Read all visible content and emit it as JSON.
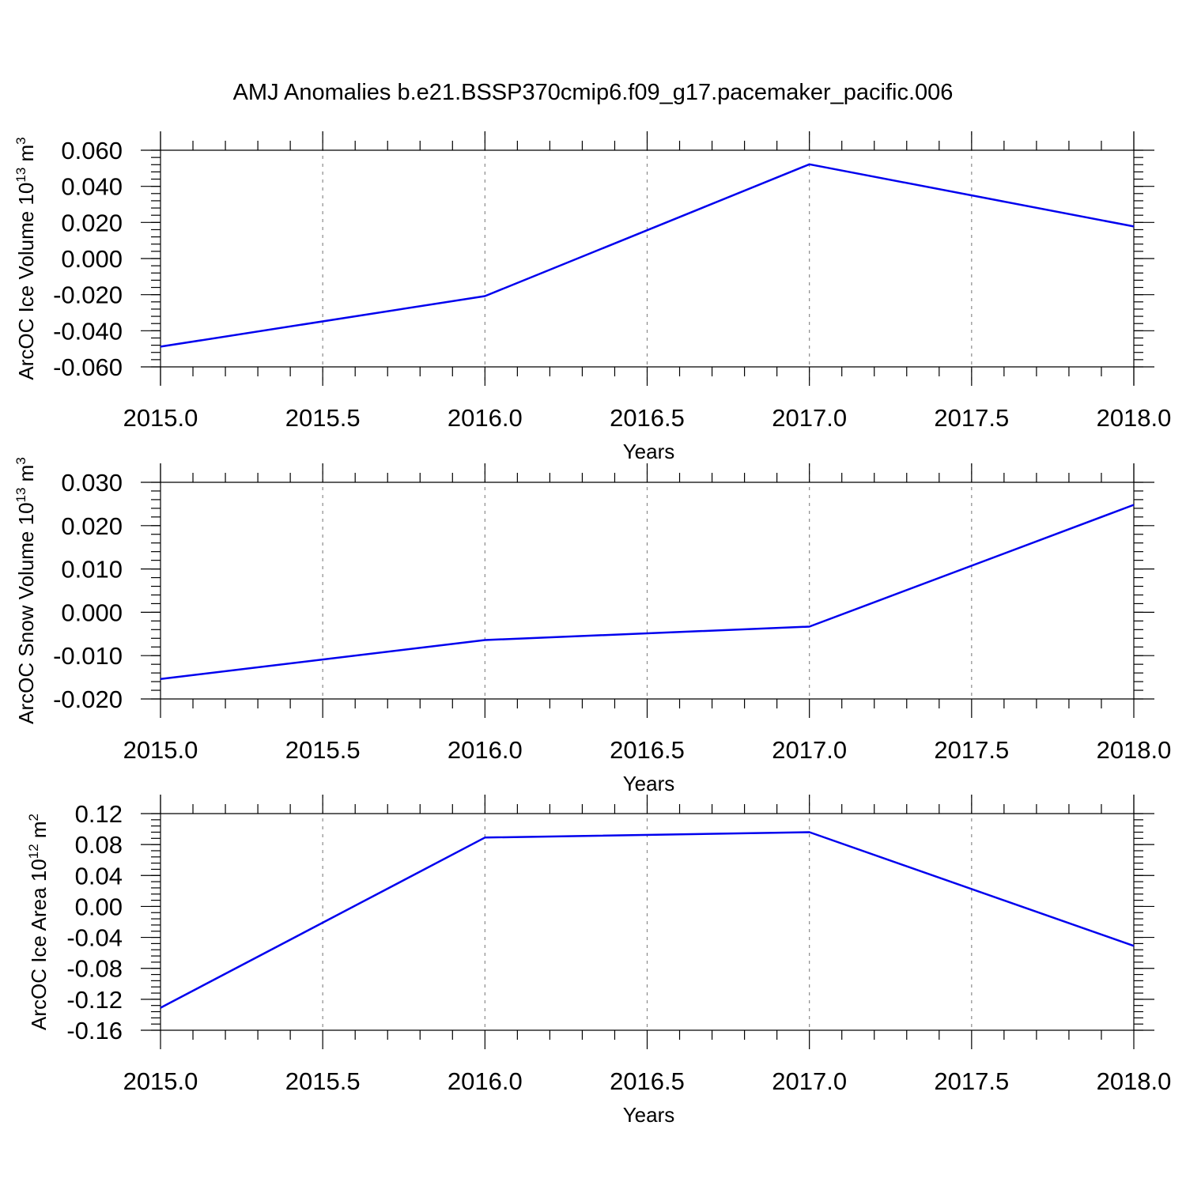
{
  "title": "AMJ Anomalies b.e21.BSSP370cmip6.f09_g17.pacemaker_pacific.006",
  "colors": {
    "series": "#0000ee",
    "grid": "#8a8a8a",
    "axis": "#000000"
  },
  "chart_data": [
    {
      "type": "line",
      "ylabel": {
        "base": "ArcOC Ice Volume 10",
        "exponent": "13",
        "unit": " m",
        "unit_exponent": "3"
      },
      "xlabel": "Years",
      "xlim": [
        2015.0,
        2018.0
      ],
      "ylim": [
        -0.06,
        0.06
      ],
      "xticks": [
        "2015.0",
        "2015.5",
        "2016.0",
        "2016.5",
        "2017.0",
        "2017.5",
        "2018.0"
      ],
      "yticks": [
        "-0.060",
        "-0.040",
        "-0.020",
        "0.000",
        "0.020",
        "0.040",
        "0.060"
      ],
      "grid": "x-major-dashed",
      "series": [
        {
          "x": [
            2015,
            2016,
            2017,
            2018
          ],
          "y": [
            -0.0488,
            -0.0208,
            0.0522,
            0.0178
          ]
        }
      ]
    },
    {
      "type": "line",
      "ylabel": {
        "base": "ArcOC Snow Volume 10",
        "exponent": "13",
        "unit": " m",
        "unit_exponent": "3"
      },
      "xlabel": "Years",
      "xlim": [
        2015.0,
        2018.0
      ],
      "ylim": [
        -0.02,
        0.03
      ],
      "xticks": [
        "2015.0",
        "2015.5",
        "2016.0",
        "2016.5",
        "2017.0",
        "2017.5",
        "2018.0"
      ],
      "yticks": [
        "-0.020",
        "-0.010",
        "0.000",
        "0.010",
        "0.020",
        "0.030"
      ],
      "grid": "x-major-dashed",
      "series": [
        {
          "x": [
            2015,
            2016,
            2017,
            2018
          ],
          "y": [
            -0.0154,
            -0.0064,
            -0.0033,
            0.0248
          ]
        }
      ]
    },
    {
      "type": "line",
      "ylabel": {
        "base": "ArcOC Ice Area 10",
        "exponent": "12",
        "unit": " m",
        "unit_exponent": "2"
      },
      "xlabel": "Years",
      "xlim": [
        2015.0,
        2018.0
      ],
      "ylim": [
        -0.16,
        0.12
      ],
      "xticks": [
        "2015.0",
        "2015.5",
        "2016.0",
        "2016.5",
        "2017.0",
        "2017.5",
        "2018.0"
      ],
      "yticks": [
        "-0.16",
        "-0.12",
        "-0.08",
        "-0.04",
        "0.00",
        "0.04",
        "0.08",
        "0.12"
      ],
      "grid": "x-major-dashed",
      "series": [
        {
          "x": [
            2015,
            2016,
            2017,
            2018
          ],
          "y": [
            -0.131,
            0.089,
            0.096,
            -0.051
          ]
        }
      ]
    }
  ]
}
